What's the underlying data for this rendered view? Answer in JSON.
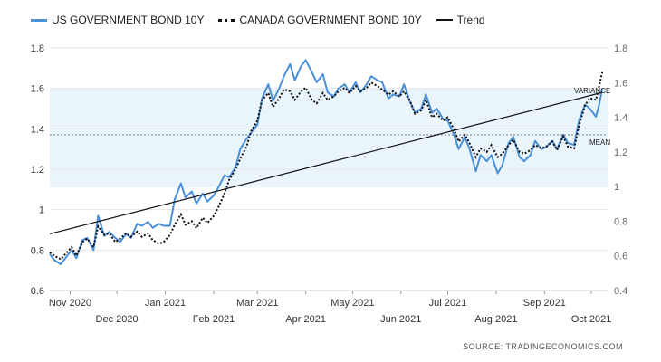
{
  "legend": {
    "us": "US GOVERNMENT BOND 10Y",
    "canada": "CANADA GOVERNMENT BOND 10Y",
    "trend": "Trend"
  },
  "source": "SOURCE:  TRADINGECONOMICS.COM",
  "chart_data": {
    "type": "line",
    "title": "",
    "colors": {
      "us": "#4a90d9",
      "canada": "#111111",
      "trend": "#111111",
      "band": "#eaf4fb"
    },
    "ylim_left": [
      0.6,
      1.8
    ],
    "yticks_left": [
      0.6,
      0.8,
      1.0,
      1.2,
      1.4,
      1.6,
      1.8
    ],
    "ytick_labels_left": [
      "0.6",
      "0.8",
      "1",
      "1.2",
      "1.4",
      "1.6",
      "1.8"
    ],
    "ylim_right": [
      0.4,
      1.8
    ],
    "yticks_right": [
      0.4,
      0.6,
      0.8,
      1.0,
      1.2,
      1.4,
      1.6,
      1.8
    ],
    "ytick_labels_right": [
      "0.4",
      "0.6",
      "0.8",
      "1",
      "1.2",
      "1.4",
      "1.6",
      "1.8"
    ],
    "xlim": [
      "2020-10-19",
      "2021-10-12"
    ],
    "x_ticks_row1": [
      {
        "date": "2020-11-01",
        "label": "Nov 2020"
      },
      {
        "date": "2021-01-01",
        "label": "Jan 2021"
      },
      {
        "date": "2021-03-01",
        "label": "Mar 2021"
      },
      {
        "date": "2021-05-01",
        "label": "May 2021"
      },
      {
        "date": "2021-07-01",
        "label": "Jul 2021"
      },
      {
        "date": "2021-09-01",
        "label": "Sep 2021"
      }
    ],
    "x_ticks_row2": [
      {
        "date": "2020-12-01",
        "label": "Dec 2020"
      },
      {
        "date": "2021-02-01",
        "label": "Feb 2021"
      },
      {
        "date": "2021-04-01",
        "label": "Apr 2021"
      },
      {
        "date": "2021-06-01",
        "label": "Jun 2021"
      },
      {
        "date": "2021-08-01",
        "label": "Aug 2021"
      },
      {
        "date": "2021-10-01",
        "label": "Oct 2021"
      }
    ],
    "mean": 1.37,
    "variance_band": [
      1.11,
      1.6
    ],
    "annotations": {
      "variance": "VARIANCE",
      "mean": "MEAN"
    },
    "trend": {
      "start": {
        "date": "2020-10-19",
        "value": 0.88
      },
      "end": {
        "date": "2021-10-08",
        "value": 1.58
      }
    },
    "series": [
      {
        "name": "US GOVERNMENT BOND 10Y",
        "axis": "left",
        "points": [
          [
            "2020-10-19",
            0.78
          ],
          [
            "2020-10-22",
            0.75
          ],
          [
            "2020-10-26",
            0.73
          ],
          [
            "2020-10-29",
            0.76
          ],
          [
            "2020-11-02",
            0.8
          ],
          [
            "2020-11-05",
            0.76
          ],
          [
            "2020-11-09",
            0.85
          ],
          [
            "2020-11-12",
            0.86
          ],
          [
            "2020-11-16",
            0.8
          ],
          [
            "2020-11-19",
            0.97
          ],
          [
            "2020-11-23",
            0.87
          ],
          [
            "2020-11-26",
            0.89
          ],
          [
            "2020-11-30",
            0.86
          ],
          [
            "2020-12-03",
            0.84
          ],
          [
            "2020-12-07",
            0.88
          ],
          [
            "2020-12-10",
            0.86
          ],
          [
            "2020-12-14",
            0.93
          ],
          [
            "2020-12-17",
            0.92
          ],
          [
            "2020-12-21",
            0.94
          ],
          [
            "2020-12-24",
            0.91
          ],
          [
            "2020-12-28",
            0.93
          ],
          [
            "2020-12-31",
            0.92
          ],
          [
            "2021-01-04",
            0.92
          ],
          [
            "2021-01-07",
            1.05
          ],
          [
            "2021-01-11",
            1.13
          ],
          [
            "2021-01-14",
            1.06
          ],
          [
            "2021-01-18",
            1.09
          ],
          [
            "2021-01-21",
            1.03
          ],
          [
            "2021-01-25",
            1.08
          ],
          [
            "2021-01-28",
            1.04
          ],
          [
            "2021-02-01",
            1.07
          ],
          [
            "2021-02-04",
            1.11
          ],
          [
            "2021-02-08",
            1.17
          ],
          [
            "2021-02-11",
            1.16
          ],
          [
            "2021-02-15",
            1.21
          ],
          [
            "2021-02-18",
            1.3
          ],
          [
            "2021-02-22",
            1.35
          ],
          [
            "2021-02-25",
            1.38
          ],
          [
            "2021-03-01",
            1.42
          ],
          [
            "2021-03-04",
            1.55
          ],
          [
            "2021-03-08",
            1.62
          ],
          [
            "2021-03-11",
            1.54
          ],
          [
            "2021-03-15",
            1.6
          ],
          [
            "2021-03-18",
            1.66
          ],
          [
            "2021-03-22",
            1.72
          ],
          [
            "2021-03-25",
            1.64
          ],
          [
            "2021-03-29",
            1.71
          ],
          [
            "2021-04-01",
            1.74
          ],
          [
            "2021-04-05",
            1.68
          ],
          [
            "2021-04-08",
            1.63
          ],
          [
            "2021-04-12",
            1.67
          ],
          [
            "2021-04-15",
            1.58
          ],
          [
            "2021-04-19",
            1.56
          ],
          [
            "2021-04-22",
            1.6
          ],
          [
            "2021-04-26",
            1.62
          ],
          [
            "2021-04-29",
            1.58
          ],
          [
            "2021-05-03",
            1.63
          ],
          [
            "2021-05-06",
            1.58
          ],
          [
            "2021-05-10",
            1.62
          ],
          [
            "2021-05-13",
            1.66
          ],
          [
            "2021-05-17",
            1.64
          ],
          [
            "2021-05-20",
            1.63
          ],
          [
            "2021-05-24",
            1.55
          ],
          [
            "2021-05-27",
            1.57
          ],
          [
            "2021-05-31",
            1.56
          ],
          [
            "2021-06-03",
            1.62
          ],
          [
            "2021-06-07",
            1.53
          ],
          [
            "2021-06-10",
            1.48
          ],
          [
            "2021-06-14",
            1.5
          ],
          [
            "2021-06-17",
            1.57
          ],
          [
            "2021-06-21",
            1.48
          ],
          [
            "2021-06-24",
            1.5
          ],
          [
            "2021-06-28",
            1.45
          ],
          [
            "2021-07-01",
            1.44
          ],
          [
            "2021-07-05",
            1.37
          ],
          [
            "2021-07-08",
            1.3
          ],
          [
            "2021-07-12",
            1.36
          ],
          [
            "2021-07-15",
            1.3
          ],
          [
            "2021-07-19",
            1.19
          ],
          [
            "2021-07-22",
            1.27
          ],
          [
            "2021-07-26",
            1.24
          ],
          [
            "2021-07-29",
            1.27
          ],
          [
            "2021-08-02",
            1.18
          ],
          [
            "2021-08-05",
            1.22
          ],
          [
            "2021-08-09",
            1.33
          ],
          [
            "2021-08-12",
            1.36
          ],
          [
            "2021-08-16",
            1.26
          ],
          [
            "2021-08-19",
            1.24
          ],
          [
            "2021-08-23",
            1.27
          ],
          [
            "2021-08-26",
            1.34
          ],
          [
            "2021-08-30",
            1.3
          ],
          [
            "2021-09-02",
            1.31
          ],
          [
            "2021-09-06",
            1.34
          ],
          [
            "2021-09-09",
            1.3
          ],
          [
            "2021-09-13",
            1.37
          ],
          [
            "2021-09-16",
            1.33
          ],
          [
            "2021-09-20",
            1.32
          ],
          [
            "2021-09-23",
            1.44
          ],
          [
            "2021-09-27",
            1.52
          ],
          [
            "2021-09-30",
            1.5
          ],
          [
            "2021-10-04",
            1.46
          ],
          [
            "2021-10-06",
            1.52
          ],
          [
            "2021-10-08",
            1.6
          ]
        ]
      },
      {
        "name": "CANADA GOVERNMENT BOND 10Y",
        "axis": "right",
        "points": [
          [
            "2020-10-19",
            0.62
          ],
          [
            "2020-10-22",
            0.6
          ],
          [
            "2020-10-26",
            0.58
          ],
          [
            "2020-10-29",
            0.61
          ],
          [
            "2020-11-02",
            0.65
          ],
          [
            "2020-11-05",
            0.6
          ],
          [
            "2020-11-09",
            0.68
          ],
          [
            "2020-11-12",
            0.7
          ],
          [
            "2020-11-16",
            0.65
          ],
          [
            "2020-11-19",
            0.77
          ],
          [
            "2020-11-23",
            0.72
          ],
          [
            "2020-11-26",
            0.73
          ],
          [
            "2020-11-30",
            0.68
          ],
          [
            "2020-12-03",
            0.7
          ],
          [
            "2020-12-07",
            0.73
          ],
          [
            "2020-12-10",
            0.71
          ],
          [
            "2020-12-14",
            0.74
          ],
          [
            "2020-12-17",
            0.71
          ],
          [
            "2020-12-21",
            0.73
          ],
          [
            "2020-12-24",
            0.69
          ],
          [
            "2020-12-28",
            0.67
          ],
          [
            "2020-12-31",
            0.68
          ],
          [
            "2021-01-04",
            0.72
          ],
          [
            "2021-01-07",
            0.78
          ],
          [
            "2021-01-11",
            0.84
          ],
          [
            "2021-01-14",
            0.78
          ],
          [
            "2021-01-18",
            0.8
          ],
          [
            "2021-01-21",
            0.76
          ],
          [
            "2021-01-25",
            0.82
          ],
          [
            "2021-01-28",
            0.79
          ],
          [
            "2021-02-01",
            0.83
          ],
          [
            "2021-02-04",
            0.88
          ],
          [
            "2021-02-08",
            0.96
          ],
          [
            "2021-02-11",
            1.04
          ],
          [
            "2021-02-15",
            1.1
          ],
          [
            "2021-02-18",
            1.16
          ],
          [
            "2021-02-22",
            1.23
          ],
          [
            "2021-02-25",
            1.32
          ],
          [
            "2021-03-01",
            1.38
          ],
          [
            "2021-03-04",
            1.5
          ],
          [
            "2021-03-08",
            1.54
          ],
          [
            "2021-03-11",
            1.46
          ],
          [
            "2021-03-15",
            1.51
          ],
          [
            "2021-03-18",
            1.56
          ],
          [
            "2021-03-22",
            1.55
          ],
          [
            "2021-03-25",
            1.5
          ],
          [
            "2021-03-29",
            1.55
          ],
          [
            "2021-04-01",
            1.57
          ],
          [
            "2021-04-05",
            1.5
          ],
          [
            "2021-04-08",
            1.48
          ],
          [
            "2021-04-12",
            1.54
          ],
          [
            "2021-04-15",
            1.5
          ],
          [
            "2021-04-19",
            1.52
          ],
          [
            "2021-04-22",
            1.55
          ],
          [
            "2021-04-26",
            1.57
          ],
          [
            "2021-04-29",
            1.54
          ],
          [
            "2021-05-03",
            1.58
          ],
          [
            "2021-05-06",
            1.55
          ],
          [
            "2021-05-10",
            1.57
          ],
          [
            "2021-05-13",
            1.6
          ],
          [
            "2021-05-17",
            1.58
          ],
          [
            "2021-05-20",
            1.56
          ],
          [
            "2021-05-24",
            1.53
          ],
          [
            "2021-05-27",
            1.55
          ],
          [
            "2021-05-31",
            1.52
          ],
          [
            "2021-06-03",
            1.55
          ],
          [
            "2021-06-07",
            1.49
          ],
          [
            "2021-06-10",
            1.42
          ],
          [
            "2021-06-14",
            1.44
          ],
          [
            "2021-06-17",
            1.5
          ],
          [
            "2021-06-21",
            1.4
          ],
          [
            "2021-06-24",
            1.42
          ],
          [
            "2021-06-28",
            1.38
          ],
          [
            "2021-07-01",
            1.4
          ],
          [
            "2021-07-05",
            1.33
          ],
          [
            "2021-07-08",
            1.26
          ],
          [
            "2021-07-12",
            1.3
          ],
          [
            "2021-07-15",
            1.25
          ],
          [
            "2021-07-19",
            1.17
          ],
          [
            "2021-07-22",
            1.22
          ],
          [
            "2021-07-26",
            1.2
          ],
          [
            "2021-07-29",
            1.24
          ],
          [
            "2021-08-02",
            1.17
          ],
          [
            "2021-08-05",
            1.19
          ],
          [
            "2021-08-09",
            1.24
          ],
          [
            "2021-08-12",
            1.27
          ],
          [
            "2021-08-16",
            1.2
          ],
          [
            "2021-08-19",
            1.19
          ],
          [
            "2021-08-23",
            1.21
          ],
          [
            "2021-08-26",
            1.24
          ],
          [
            "2021-08-30",
            1.22
          ],
          [
            "2021-09-02",
            1.23
          ],
          [
            "2021-09-06",
            1.26
          ],
          [
            "2021-09-09",
            1.21
          ],
          [
            "2021-09-13",
            1.29
          ],
          [
            "2021-09-16",
            1.23
          ],
          [
            "2021-09-20",
            1.22
          ],
          [
            "2021-09-23",
            1.35
          ],
          [
            "2021-09-27",
            1.47
          ],
          [
            "2021-09-30",
            1.51
          ],
          [
            "2021-10-04",
            1.5
          ],
          [
            "2021-10-06",
            1.58
          ],
          [
            "2021-10-08",
            1.66
          ]
        ]
      }
    ]
  }
}
